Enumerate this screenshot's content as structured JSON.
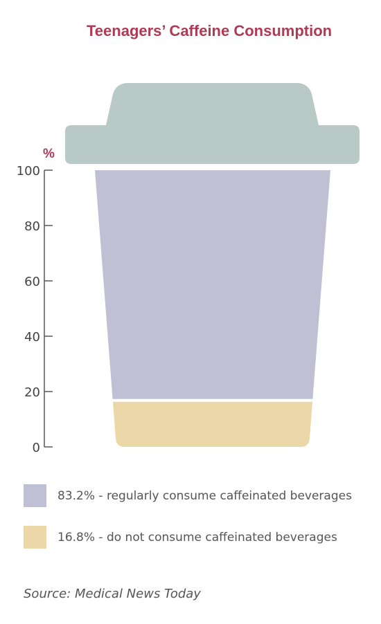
{
  "chart_data": {
    "type": "bar",
    "title": "Teenagers’ Caffeine Consumption",
    "ylabel": "%",
    "ylim": [
      0,
      100
    ],
    "yticks": [
      "0",
      "20",
      "40",
      "60",
      "80",
      "100"
    ],
    "stacked": true,
    "series": [
      {
        "value": 16.8,
        "label": "16.8% - do not consume caffeinated beverages",
        "color": "#ecd7a8"
      },
      {
        "value": 83.2,
        "label": "83.2% - regularly consume caffeinated beverages",
        "color": "#bfc0d4"
      }
    ],
    "lid_color": "#b8c9c6",
    "axis_color": "#555555",
    "tick_label_color": "#444444",
    "ylabel_color": "#b03a55",
    "source": "Source:  Medical News Today"
  }
}
